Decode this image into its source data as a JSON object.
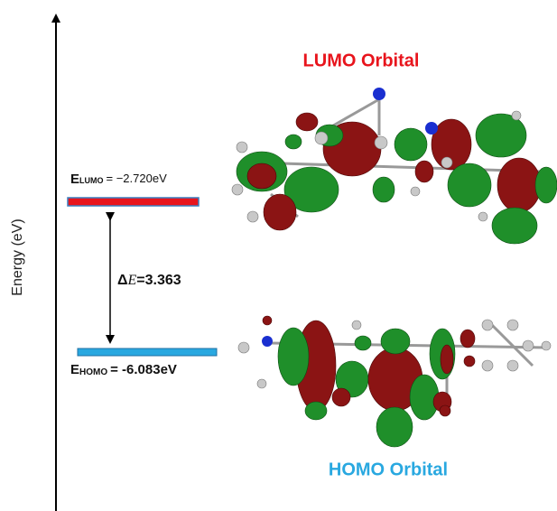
{
  "axis_label": "Energy (eV)",
  "lumo": {
    "title": "LUMO Orbital",
    "symbol": "E",
    "subscript": "LUMO",
    "value": "= −2.720eV"
  },
  "homo": {
    "title": "HOMO Orbital",
    "symbol": "E",
    "subscript": "HOMO",
    "value": "= -6.083eV"
  },
  "gap": {
    "symbol": "Δ",
    "variable": "E",
    "value": "=3.363"
  }
}
